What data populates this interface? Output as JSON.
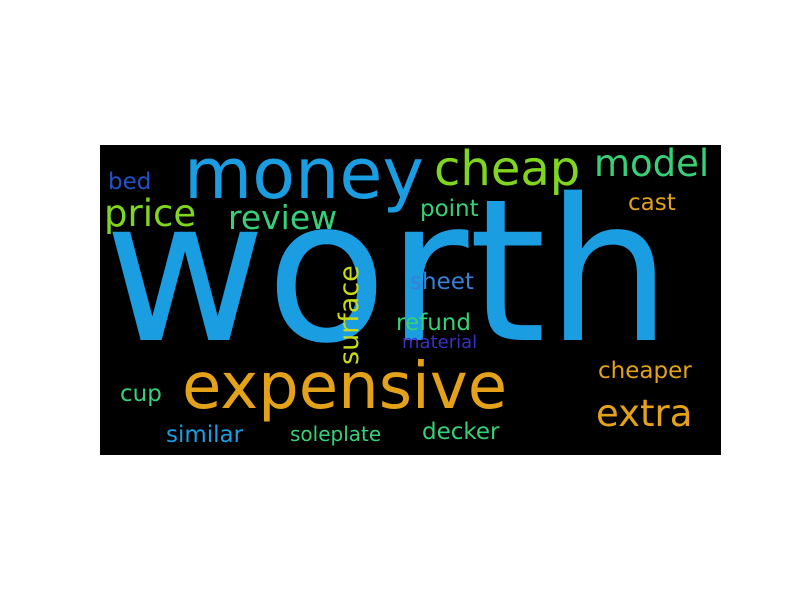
{
  "cloud": {
    "background": "#000000",
    "words": [
      {
        "text": "worth",
        "color": "#1b9de2"
      },
      {
        "text": "money",
        "color": "#1b9de2"
      },
      {
        "text": "expensive",
        "color": "#e3a21a"
      },
      {
        "text": "cheap",
        "color": "#7fd51f"
      },
      {
        "text": "model",
        "color": "#37d07a"
      },
      {
        "text": "price",
        "color": "#7fd51f"
      },
      {
        "text": "review",
        "color": "#37d07a"
      },
      {
        "text": "extra",
        "color": "#e3a21a"
      },
      {
        "text": "surface",
        "color": "#c8d91a"
      },
      {
        "text": "bed",
        "color": "#2450c8"
      },
      {
        "text": "point",
        "color": "#37d07a"
      },
      {
        "text": "cast",
        "color": "#e3a21a"
      },
      {
        "text": "sheet",
        "color": "#3a7fd6"
      },
      {
        "text": "refund",
        "color": "#37d07a"
      },
      {
        "text": "material",
        "color": "#3b2fc8"
      },
      {
        "text": "cheaper",
        "color": "#e3a21a"
      },
      {
        "text": "cup",
        "color": "#37d07a"
      },
      {
        "text": "similar",
        "color": "#1b9de2"
      },
      {
        "text": "soleplate",
        "color": "#37d07a"
      },
      {
        "text": "decker",
        "color": "#37d07a"
      }
    ]
  }
}
